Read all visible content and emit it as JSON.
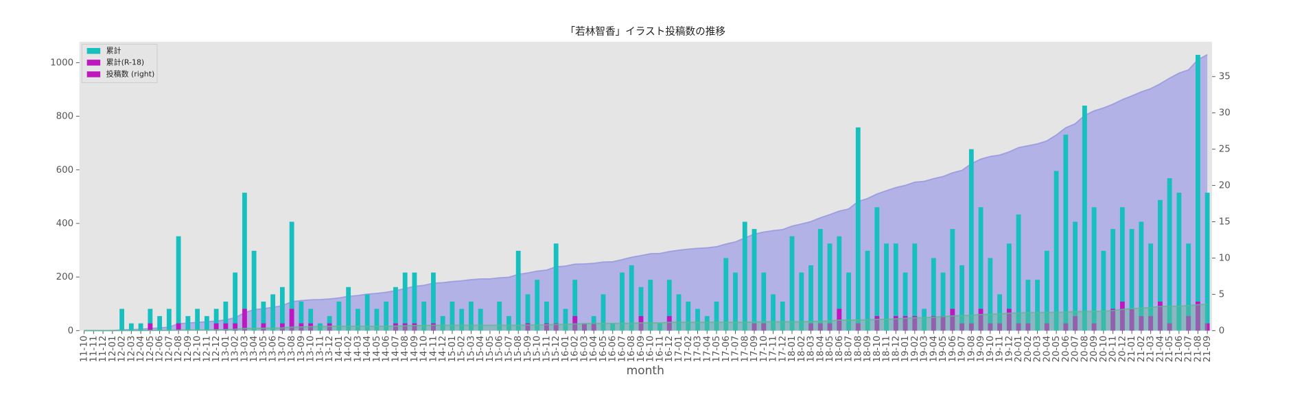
{
  "chart_data": {
    "type": "bar",
    "title": "「若林智香」イラスト投稿数の推移",
    "x_label": "month",
    "categories": [
      "11-10",
      "11-11",
      "11-12",
      "12-01",
      "12-02",
      "12-03",
      "12-04",
      "12-05",
      "12-06",
      "12-07",
      "12-08",
      "12-09",
      "12-10",
      "12-11",
      "12-12",
      "13-01",
      "13-02",
      "13-03",
      "13-04",
      "13-05",
      "13-06",
      "13-07",
      "13-08",
      "13-09",
      "13-10",
      "13-11",
      "13-12",
      "14-01",
      "14-02",
      "14-03",
      "14-04",
      "14-05",
      "14-06",
      "14-07",
      "14-08",
      "14-09",
      "14-10",
      "14-11",
      "14-12",
      "15-01",
      "15-02",
      "15-03",
      "15-04",
      "15-05",
      "15-06",
      "15-07",
      "15-08",
      "15-09",
      "15-10",
      "15-11",
      "15-12",
      "16-01",
      "16-02",
      "16-03",
      "16-04",
      "16-05",
      "16-06",
      "16-07",
      "16-08",
      "16-09",
      "16-10",
      "16-11",
      "16-12",
      "17-01",
      "17-02",
      "17-03",
      "17-04",
      "17-05",
      "17-06",
      "17-07",
      "17-08",
      "17-09",
      "17-10",
      "17-11",
      "17-12",
      "18-01",
      "18-02",
      "18-03",
      "18-04",
      "18-05",
      "18-06",
      "18-07",
      "18-08",
      "18-09",
      "18-10",
      "18-11",
      "18-12",
      "19-01",
      "19-02",
      "19-03",
      "19-04",
      "19-05",
      "19-06",
      "19-07",
      "19-08",
      "19-09",
      "19-10",
      "19-11",
      "19-12",
      "20-01",
      "20-02",
      "20-03",
      "20-04",
      "20-05",
      "20-06",
      "20-07",
      "20-08",
      "20-09",
      "20-10",
      "20-11",
      "20-12",
      "21-01",
      "21-02",
      "21-03",
      "21-04",
      "21-05",
      "21-06",
      "21-07",
      "21-08",
      "21-09"
    ],
    "series": [
      {
        "type": "area",
        "axis": "y",
        "color": "#a9a9e8",
        "line_color": "#9393dd",
        "values": [
          0,
          0,
          0,
          0,
          3,
          4,
          5,
          8,
          10,
          13,
          26,
          28,
          31,
          33,
          36,
          40,
          48,
          67,
          78,
          82,
          87,
          93,
          108,
          112,
          115,
          116,
          118,
          122,
          128,
          131,
          136,
          139,
          143,
          149,
          157,
          165,
          169,
          177,
          179,
          183,
          186,
          190,
          193,
          193,
          197,
          199,
          210,
          215,
          222,
          226,
          238,
          241,
          248,
          249,
          251,
          256,
          257,
          265,
          274,
          280,
          287,
          288,
          295,
          300,
          304,
          307,
          309,
          313,
          323,
          331,
          346,
          360,
          368,
          373,
          377,
          390,
          398,
          407,
          421,
          433,
          446,
          454,
          482,
          493,
          510,
          522,
          534,
          542,
          554,
          557,
          567,
          575,
          589,
          598,
          623,
          640,
          650,
          655,
          667,
          683,
          690,
          697,
          708,
          730,
          757,
          772,
          803,
          820,
          831,
          845,
          862,
          876,
          891,
          903,
          921,
          942,
          961,
          973,
          1011,
          1030
        ]
      },
      {
        "type": "bar",
        "axis": "y2",
        "color": "#17bfbf",
        "values": [
          0,
          0,
          0,
          0,
          3,
          1,
          1,
          3,
          2,
          3,
          13,
          2,
          3,
          2,
          3,
          4,
          8,
          19,
          11,
          4,
          5,
          6,
          15,
          4,
          3,
          1,
          2,
          4,
          6,
          3,
          5,
          3,
          4,
          6,
          8,
          8,
          4,
          8,
          2,
          4,
          3,
          4,
          3,
          0,
          4,
          2,
          11,
          5,
          7,
          4,
          12,
          3,
          7,
          1,
          2,
          5,
          1,
          8,
          9,
          6,
          7,
          1,
          7,
          5,
          4,
          3,
          2,
          4,
          10,
          8,
          15,
          14,
          8,
          5,
          4,
          13,
          8,
          9,
          14,
          12,
          13,
          8,
          28,
          11,
          17,
          12,
          12,
          8,
          12,
          3,
          10,
          8,
          14,
          9,
          25,
          17,
          10,
          5,
          12,
          16,
          7,
          7,
          11,
          22,
          27,
          15,
          31,
          17,
          11,
          14,
          17,
          14,
          15,
          12,
          18,
          21,
          19,
          12,
          38,
          19
        ]
      },
      {
        "type": "bar",
        "axis": "y2",
        "color": "#bf17bf",
        "values": [
          0,
          0,
          0,
          0,
          0,
          0,
          0,
          1,
          0,
          0,
          1,
          0,
          0,
          0,
          1,
          1,
          1,
          3,
          0,
          1,
          0,
          1,
          3,
          1,
          1,
          0,
          1,
          0,
          0,
          0,
          0,
          0,
          0,
          1,
          1,
          1,
          0,
          1,
          0,
          0,
          0,
          0,
          0,
          0,
          0,
          0,
          0,
          1,
          0,
          1,
          1,
          0,
          2,
          1,
          1,
          0,
          0,
          0,
          0,
          2,
          0,
          0,
          2,
          0,
          0,
          0,
          0,
          0,
          0,
          0,
          0,
          1,
          1,
          0,
          0,
          0,
          0,
          1,
          1,
          1,
          3,
          0,
          1,
          0,
          2,
          0,
          2,
          2,
          2,
          0,
          2,
          2,
          3,
          1,
          1,
          3,
          1,
          1,
          3,
          1,
          1,
          0,
          1,
          0,
          1,
          2,
          0,
          1,
          0,
          3,
          4,
          3,
          2,
          2,
          4,
          1,
          0,
          2,
          4,
          1
        ]
      },
      {
        "type": "area",
        "axis": "y",
        "color": "#5fb894",
        "line_color": "#5fb894",
        "values": [
          0,
          0,
          0,
          0,
          0,
          0,
          0,
          1,
          1,
          1,
          2,
          2,
          2,
          2,
          3,
          4,
          5,
          8,
          8,
          9,
          9,
          10,
          13,
          14,
          15,
          15,
          16,
          16,
          16,
          16,
          16,
          16,
          16,
          17,
          18,
          19,
          19,
          20,
          20,
          20,
          20,
          20,
          20,
          20,
          20,
          20,
          20,
          21,
          21,
          22,
          23,
          23,
          25,
          26,
          27,
          27,
          27,
          27,
          27,
          29,
          29,
          29,
          31,
          31,
          31,
          31,
          31,
          31,
          31,
          31,
          31,
          32,
          33,
          33,
          33,
          33,
          33,
          34,
          35,
          36,
          39,
          39,
          40,
          40,
          42,
          42,
          44,
          46,
          48,
          48,
          50,
          52,
          55,
          56,
          57,
          60,
          61,
          62,
          65,
          66,
          67,
          67,
          68,
          68,
          69,
          71,
          71,
          72,
          72,
          75,
          79,
          82,
          84,
          86,
          90,
          91,
          91,
          93,
          97,
          98
        ]
      }
    ],
    "legend": [
      {
        "label": "累計",
        "color": "#17bfbf"
      },
      {
        "label": "累計(R-18)",
        "color": "#bf17bf"
      },
      {
        "label": "投稿数 (right)",
        "color": "#bf17bf"
      }
    ],
    "legend_position": "upper left",
    "ylim": [
      0,
      1078
    ],
    "yticks": [
      0,
      200,
      400,
      600,
      800,
      1000
    ],
    "y2lim": [
      0,
      39.8
    ],
    "y2ticks": [
      0,
      5,
      10,
      15,
      20,
      25,
      30,
      35
    ],
    "grid": false
  }
}
